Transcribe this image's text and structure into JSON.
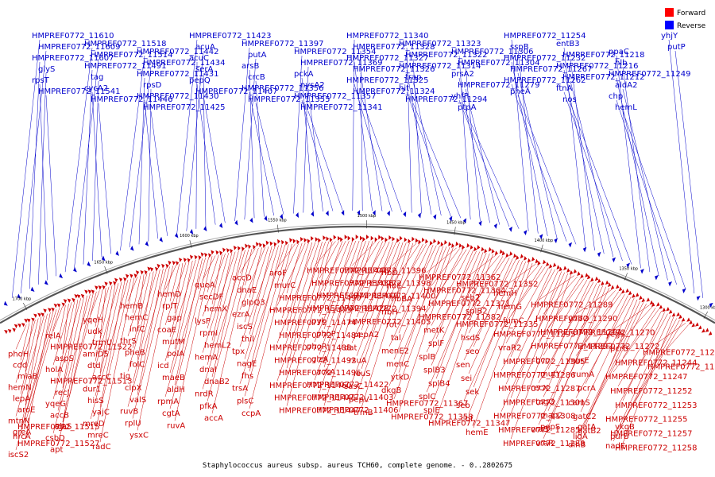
{
  "caption": "Staphylococcus aureus subsp. aureus TCH60, complete genome. - 0..2802675",
  "legend": [
    {
      "label": "Forward",
      "color": "#ff0000"
    },
    {
      "label": "Reverse",
      "color": "#0000ff"
    }
  ],
  "ticks": [
    "1700 kbp",
    "1650 kbp",
    "1600 kbp",
    "1550 kbp",
    "1500 kbp",
    "1450 kbp",
    "1400 kbp",
    "1350 kbp",
    "1300 kbp"
  ],
  "reverse_labels": [
    "HMPREF0772_11610",
    "HMPREF0772_11609",
    "HMPREF0772_11607",
    "glyS",
    "rpsT",
    "HMPREF0772_11541",
    "HMPREF0772_11518",
    "HMPREF0772_11514",
    "HMPREF0772_11491",
    "tag",
    "cycA2",
    "HMPREF0772_11446",
    "HMPREF0772_11442",
    "HMPREF0772_11434",
    "HMPREF0772_11431",
    "rpsD",
    "HMPREF0772_11430",
    "HMPREF0772_11425",
    "HMPREF0772_11423",
    "acuA",
    "acuC",
    "serA",
    "pepQ",
    "HMPREF0772_11407",
    "HMPREF0772_11397",
    "putA",
    "arsB",
    "crcB",
    "HMPREF0772_11356",
    "HMPREF0772_11355",
    "HMPREF0772_11354",
    "HMPREF0772_11369",
    "pckA",
    "nysA2",
    "HMPREF0772_11357",
    "HMPREF0772_11341",
    "HMPREF0772_11340",
    "HMPREF0772_11328",
    "HMPREF0772_11327",
    "HMPREF0772_11326",
    "HMPREF0772_11325",
    "HMPREF0772_11324",
    "HMPREF0772_11323",
    "HMPREF0772_11322",
    "HMPREF0772_11314",
    "trap",
    "hit",
    "HMPREF0772_11294",
    "HMPREF0772_11306",
    "HMPREF0772_11304",
    "prsA2",
    "HMPREF0772_11279",
    "yhfP",
    "ptpA",
    "HMPREF0772_11254",
    "sspB",
    "HMPREF0772_11232",
    "HMPREF0772_11267",
    "HMPREF0772_11262",
    "pheA",
    "entB3",
    "HMPREF0772_11218",
    "HMPREF0772_11216",
    "HMPREF0772_11212",
    "ftnA",
    "nos",
    "ppaC",
    "hlb",
    "HMPREF0772_11249",
    "aldA2",
    "chp",
    "hemL",
    "yhjY",
    "putP"
  ],
  "forward_labels": [
    "phoH",
    "cdd",
    "miaB",
    "hemN",
    "lepA",
    "aroE",
    "mtnN",
    "greA",
    "HMPREF0772_11527",
    "iscS2",
    "hrcA",
    "HMPREF0772_11515",
    "relA",
    "HMPREF0772_11522",
    "aspS",
    "holA",
    "HMPREF0772_11513",
    "recJ",
    "yqeG",
    "accB",
    "alaS",
    "csbD",
    "apt",
    "tgt",
    "yqeH",
    "udk",
    "trmU",
    "amiD5",
    "dtd",
    "accC",
    "dur1",
    "hisS",
    "yajC",
    "mreD",
    "mreC",
    "radC",
    "hemB",
    "hemC",
    "infC",
    "thrS",
    "pheB",
    "folC",
    "tig",
    "clpX",
    "valS",
    "ruvB",
    "rplU",
    "ysxC",
    "hemD",
    "rplT",
    "gap",
    "coaE",
    "mutM",
    "polA",
    "icd",
    "maeB",
    "aldH",
    "rpmA",
    "cgtA",
    "ruvA",
    "queA",
    "secDF",
    "hemX",
    "lysP",
    "rpmI",
    "hemL2",
    "hemA",
    "dnaI",
    "dnaB2",
    "nrdR",
    "pfkA",
    "accA",
    "accD",
    "dnaE",
    "glpQ3",
    "ezrA",
    "iscS",
    "thiI",
    "tpx",
    "nagE",
    "fhs",
    "trsA",
    "plsC",
    "ccpA",
    "aroF",
    "murC",
    "HMPREF0772_11490",
    "HMPREF0772_11473",
    "HMPREF0772_11474",
    "HMPREF0772_11484",
    "HMPREF0772_11488",
    "HMPREF0772_11492",
    "HMPREF0772_11496",
    "HMPREF0772_11460",
    "HMPREF0772_11445",
    "HMPREF0772_11447",
    "HMPREF0772_11448",
    "HMPREF0772_11438",
    "HMPREF0772_11440",
    "HMPREF0772_11428",
    "pyk",
    "phoP",
    "phoR",
    "glzA",
    "ackA",
    "HMPREF0772_11422",
    "HMPREF0772_11403",
    "HMPREF0772_11406",
    "HMPREF0772_11396",
    "HMPREF0772_11398",
    "HMPREF0772_11400",
    "HMPREF0772_11394",
    "HMPREF0772_11405",
    "pepA2",
    "dat",
    "rsuA",
    "leuS",
    "sasC",
    "pepV",
    "trmB",
    "ribD",
    "ribE",
    "ribBA",
    "ribH",
    "rot",
    "tal",
    "menE2",
    "menC",
    "ytkD",
    "dkgB",
    "HMPREF0772_11367",
    "HMPREF0772_11358",
    "HMPREF0772_11362",
    "HMPREF0772_11364",
    "HMPREF0772_11371",
    "HMPREF0772_11382",
    "metK",
    "splF",
    "splB",
    "splB3",
    "splB4",
    "splC",
    "splE",
    "HMPREF0772_11347",
    "HMPREF0772_11352",
    "seb2",
    "splB2",
    "HMPREF0772_11335",
    "hsdS",
    "seo",
    "sen",
    "sei",
    "sek",
    "seb",
    "cbf",
    "hemE",
    "hemH",
    "hemG",
    "fumC",
    "HMPREF0772_11295",
    "vraR2",
    "HMPREF0772_11305",
    "HMPREF0772_11286",
    "HMPREF0772_11287",
    "HMPREF0772_11301",
    "HMPREF0772_11308",
    "HMPREF0772_11285",
    "HMPREF0772_11288",
    "HMPREF0772_11289",
    "HMPREF0772_11290",
    "HMPREF0772_11291",
    "HMPREF0772_11292",
    "bcp",
    "mutY",
    "recX",
    "tagG",
    "map2",
    "vraS",
    "vraR",
    "pepS",
    "yhbO",
    "HMPREF0772_11270",
    "HMPREF0772_11272",
    "murE",
    "rumA",
    "pcrA",
    "camS",
    "gatC2",
    "gatB2",
    "dinB",
    "ligA",
    "gatA",
    "yegS",
    "pcrB",
    "HMPREF0772_11244",
    "HMPREF0772_11247",
    "HMPREF0772_11252",
    "HMPREF0772_11253",
    "HMPREF0772_11255",
    "HMPREF0772_11257",
    "HMPREF0772_11258",
    "nadE",
    "purB",
    "ykgB",
    "HMPREF0772_11230",
    "HMPREF0772_11235"
  ]
}
